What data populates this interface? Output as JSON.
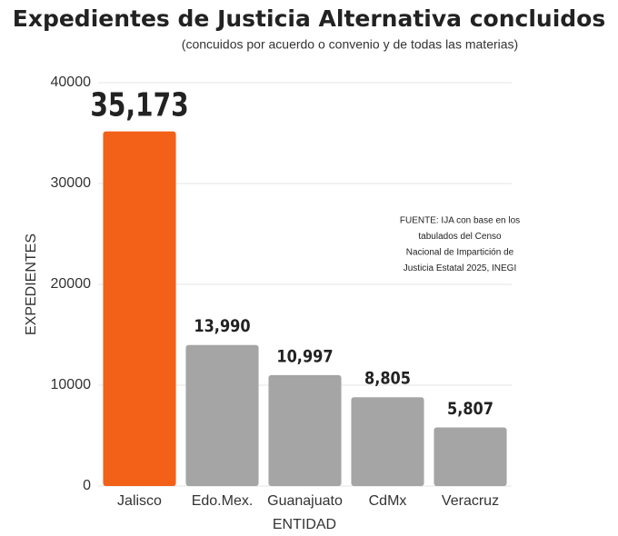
{
  "chart_data": {
    "type": "bar",
    "title": "Expedientes de Justicia Alternativa concluidos",
    "subtitle": "(concuidos por acuerdo o convenio y de todas las materias)",
    "x_label": "ENTIDAD",
    "y_label": "EXPEDIENTES",
    "categories": [
      "Jalisco",
      "Edo.Mex.",
      "Guanajuato",
      "CdMx",
      "Veracruz"
    ],
    "values": [
      35173,
      13990,
      10997,
      8805,
      5807
    ],
    "value_labels": [
      "35,173",
      "13,990",
      "10,997",
      "8,805",
      "5,807"
    ],
    "colors": [
      "#f26117",
      "#a5a5a5",
      "#a5a5a5",
      "#a5a5a5",
      "#a5a5a5"
    ],
    "label_colors": [
      "#f26117",
      "#555555",
      "#555555",
      "#555555",
      "#555555"
    ],
    "ylim": [
      0,
      40000
    ],
    "yticks": [
      0,
      10000,
      20000,
      30000,
      40000
    ],
    "grid": true,
    "annotation": [
      "FUENTE: IJA con base en los",
      "tabulados del Censo",
      "Nacional de Impartición de",
      "Justicia Estatal 2025, INEGI"
    ]
  }
}
